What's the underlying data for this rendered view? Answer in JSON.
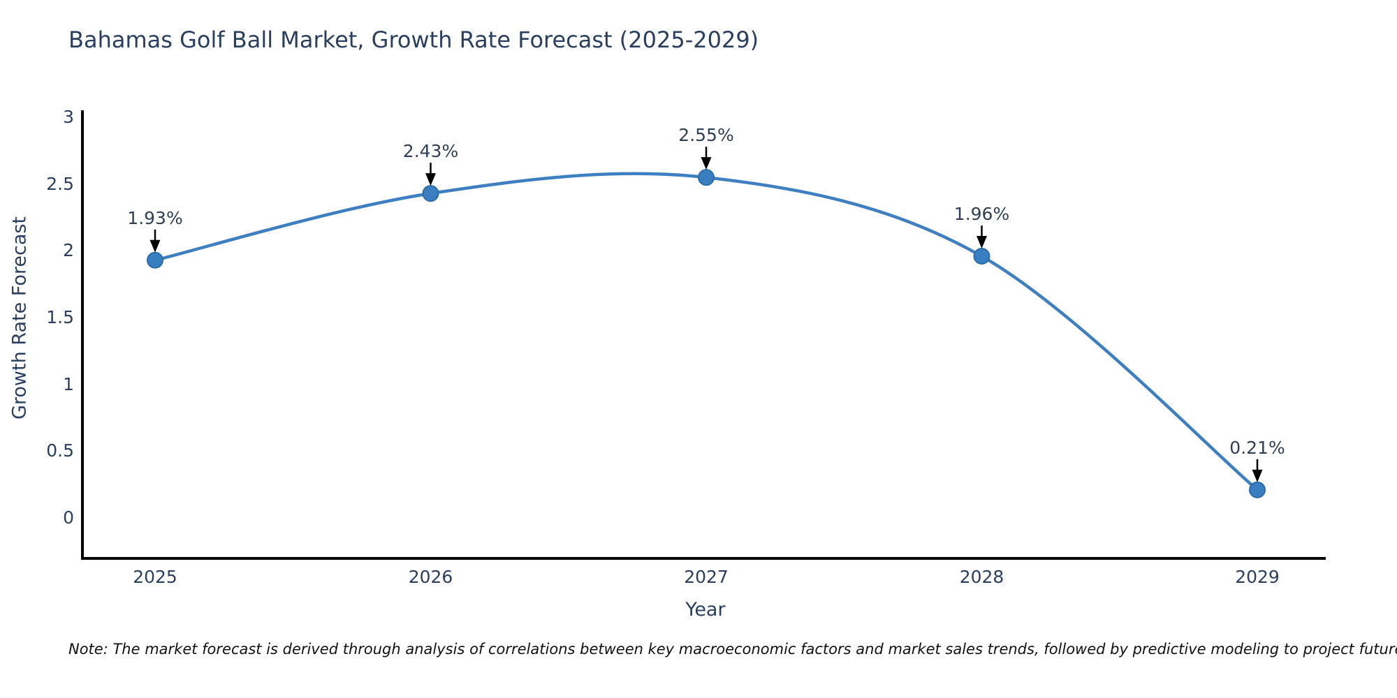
{
  "title": "Bahamas Golf Ball Market, Growth Rate Forecast (2025-2029)",
  "note": "Note: The market forecast is derived through analysis of correlations between key macroeconomic factors and market sales trends, followed by predictive modeling to project future sales",
  "chart_data": {
    "type": "line",
    "title": "Bahamas Golf Ball Market, Growth Rate Forecast (2025-2029)",
    "xlabel": "Year",
    "ylabel": "Growth Rate Forecast",
    "categories": [
      "2025",
      "2026",
      "2027",
      "2028",
      "2029"
    ],
    "values": [
      1.93,
      2.43,
      2.55,
      1.96,
      0.21
    ],
    "point_labels": [
      "1.93%",
      "2.43%",
      "2.55%",
      "1.96%",
      "0.21%"
    ],
    "yticks": [
      "3",
      "2.5",
      "2",
      "1.5",
      "1",
      "0.5",
      "0"
    ],
    "ytick_values": [
      3,
      2.5,
      2,
      1.5,
      1,
      0.5,
      0
    ],
    "ylim": [
      0,
      3
    ],
    "line_shape": "spline",
    "grid": "off",
    "legend": "none",
    "line_color": "#3d7fc1",
    "marker_color": "#3a7ec2",
    "marker_edge_color": "#2e6ca8",
    "axis_color": "#000000",
    "text_color": "#2a3f5f",
    "annotation_arrow_color": "#000000"
  }
}
